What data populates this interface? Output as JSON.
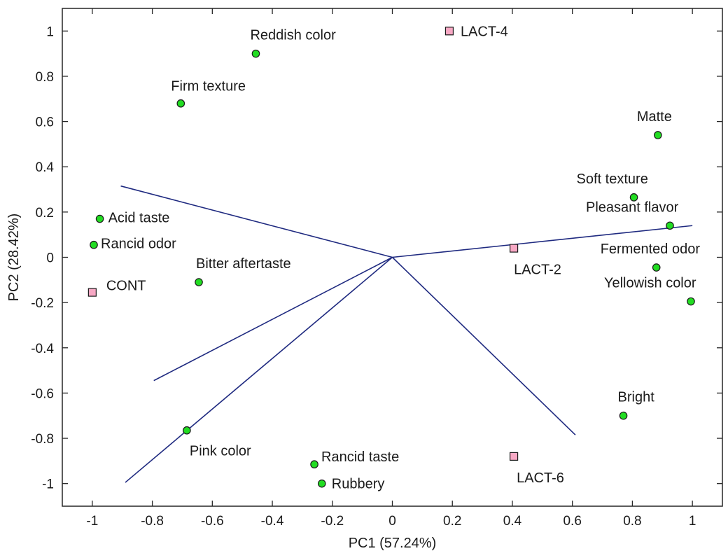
{
  "chart_data": {
    "type": "scatter",
    "title": "",
    "xlabel": "PC1 (57.24%)",
    "ylabel": "PC2 (28.42%)",
    "xlim": [
      -1.1,
      1.1
    ],
    "ylim": [
      -1.1,
      1.1
    ],
    "xticks": [
      -1,
      -0.8,
      -0.6,
      -0.4,
      -0.2,
      0,
      0.2,
      0.4,
      0.6,
      0.8,
      1
    ],
    "yticks": [
      -1,
      -0.8,
      -0.6,
      -0.4,
      -0.2,
      0,
      0.2,
      0.4,
      0.6,
      0.8,
      1
    ],
    "grid": false,
    "colors": {
      "attribute": "#22dd22",
      "sample": "#f7a8c4",
      "vector": "#1f2a80"
    },
    "attributes": [
      {
        "label": "Reddish color",
        "x": -0.455,
        "y": 0.9
      },
      {
        "label": "Firm texture",
        "x": -0.705,
        "y": 0.68
      },
      {
        "label": "Matte",
        "x": 0.885,
        "y": 0.54
      },
      {
        "label": "Soft texture",
        "x": 0.805,
        "y": 0.265
      },
      {
        "label": "Pleasant flavor",
        "x": 0.925,
        "y": 0.14
      },
      {
        "label": "Acid taste",
        "x": -0.975,
        "y": 0.17
      },
      {
        "label": "Rancid odor",
        "x": -0.995,
        "y": 0.055
      },
      {
        "label": "Fermented odor",
        "x": 0.88,
        "y": -0.045
      },
      {
        "label": "Bitter aftertaste",
        "x": -0.645,
        "y": -0.11
      },
      {
        "label": "Yellowish color",
        "x": 0.995,
        "y": -0.195
      },
      {
        "label": "Bright",
        "x": 0.77,
        "y": -0.7
      },
      {
        "label": "Pink color",
        "x": -0.685,
        "y": -0.765
      },
      {
        "label": "Rancid taste",
        "x": -0.26,
        "y": -0.915
      },
      {
        "label": "Rubbery",
        "x": -0.235,
        "y": -1.0
      }
    ],
    "samples": [
      {
        "label": "LACT-4",
        "x": 0.19,
        "y": 1.0
      },
      {
        "label": "LACT-2",
        "x": 0.405,
        "y": 0.04
      },
      {
        "label": "CONT",
        "x": -1.0,
        "y": -0.155
      },
      {
        "label": "LACT-6",
        "x": 0.405,
        "y": -0.88
      }
    ],
    "vectors": [
      {
        "x": -0.905,
        "y": 0.315
      },
      {
        "x": 1.0,
        "y": 0.14
      },
      {
        "x": -0.795,
        "y": -0.545
      },
      {
        "x": -0.89,
        "y": -0.995
      },
      {
        "x": 0.61,
        "y": -0.785
      }
    ]
  }
}
